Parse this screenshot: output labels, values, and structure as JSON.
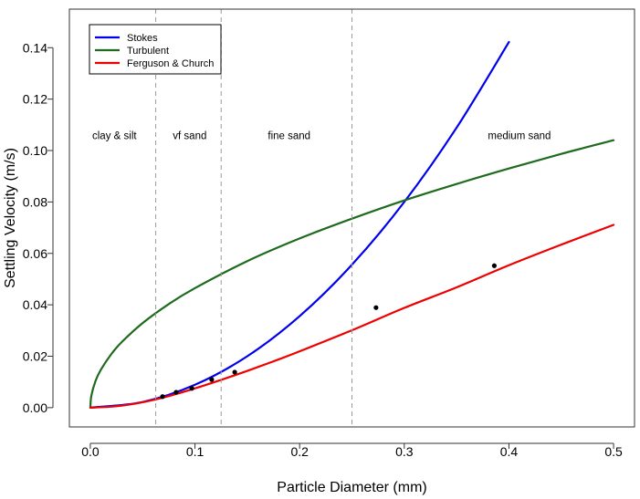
{
  "chart_data": {
    "type": "line",
    "title": "",
    "xlabel": "Particle Diameter (mm)",
    "ylabel": "Settling Velocity (m/s)",
    "xlim": [
      -0.02,
      0.52
    ],
    "ylim": [
      -0.0075,
      0.155
    ],
    "x_ticks": [
      0.0,
      0.1,
      0.2,
      0.3,
      0.4,
      0.5
    ],
    "x_tick_labels": [
      "0.0",
      "0.1",
      "0.2",
      "0.3",
      "0.4",
      "0.5"
    ],
    "y_ticks": [
      0.0,
      0.02,
      0.04,
      0.06,
      0.08,
      0.1,
      0.12,
      0.14
    ],
    "y_tick_labels": [
      "0.00",
      "0.02",
      "0.04",
      "0.06",
      "0.08",
      "0.10",
      "0.12",
      "0.14"
    ],
    "grid": false,
    "legend_position": "top-left",
    "series": [
      {
        "name": "Stokes",
        "color": "#0000ee",
        "x": [
          0.0,
          0.05,
          0.1,
          0.15,
          0.2,
          0.25,
          0.3,
          0.35,
          0.4
        ],
        "y": [
          0.0,
          0.0022,
          0.0089,
          0.02,
          0.0356,
          0.0556,
          0.08,
          0.1089,
          0.1422
        ]
      },
      {
        "name": "Turbulent",
        "color": "#1e6b1e",
        "x": [
          0.0,
          0.001,
          0.005,
          0.01,
          0.02,
          0.03,
          0.05,
          0.075,
          0.1,
          0.15,
          0.2,
          0.25,
          0.3,
          0.35,
          0.4,
          0.45,
          0.5
        ],
        "y": [
          0.0,
          0.00465,
          0.0104,
          0.0147,
          0.0208,
          0.0255,
          0.0329,
          0.0403,
          0.0465,
          0.057,
          0.0658,
          0.0735,
          0.0806,
          0.087,
          0.093,
          0.0987,
          0.104
        ]
      },
      {
        "name": "Ferguson & Church",
        "color": "#ee0000",
        "x": [
          0.0,
          0.025,
          0.05,
          0.075,
          0.1,
          0.125,
          0.15,
          0.175,
          0.2,
          0.25,
          0.3,
          0.35,
          0.4,
          0.45,
          0.5
        ],
        "y": [
          0.0,
          0.00055,
          0.0021,
          0.0045,
          0.0075,
          0.0108,
          0.0143,
          0.018,
          0.0219,
          0.0301,
          0.0388,
          0.0468,
          0.0554,
          0.0634,
          0.0711
        ]
      }
    ],
    "points": {
      "name": "observations",
      "color": "#000000",
      "x": [
        0.069,
        0.082,
        0.097,
        0.116,
        0.138,
        0.273,
        0.386
      ],
      "y": [
        0.0043,
        0.006,
        0.0075,
        0.0109,
        0.0138,
        0.0389,
        0.0552
      ]
    },
    "vlines": {
      "color": "#999999",
      "dashed": true,
      "x": [
        0.0625,
        0.125,
        0.25
      ]
    },
    "regions": [
      {
        "label": "clay & silt",
        "x": 0.023,
        "y": 0.1045
      },
      {
        "label": "vf sand",
        "x": 0.095,
        "y": 0.1045
      },
      {
        "label": "fine sand",
        "x": 0.19,
        "y": 0.1045
      },
      {
        "label": "medium sand",
        "x": 0.41,
        "y": 0.1045
      }
    ]
  }
}
